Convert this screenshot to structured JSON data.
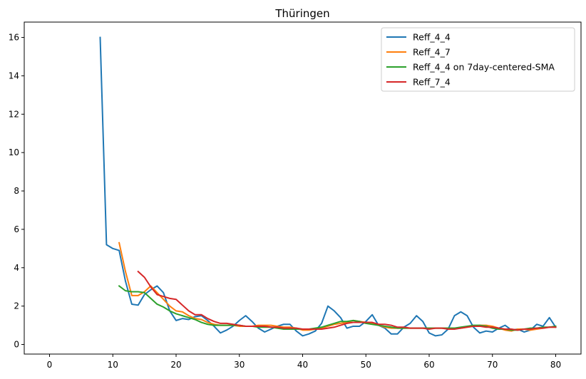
{
  "chart_data": {
    "type": "line",
    "title": "Thüringen",
    "xlabel": "",
    "ylabel": "",
    "xlim": [
      -4,
      84
    ],
    "ylim": [
      -0.5,
      16.8
    ],
    "xticks": [
      0,
      10,
      20,
      30,
      40,
      50,
      60,
      70,
      80
    ],
    "yticks": [
      0,
      2,
      4,
      6,
      8,
      10,
      12,
      14,
      16
    ],
    "grid": false,
    "legend_position": "upper right",
    "series": [
      {
        "name": "Reff_4_4",
        "color": "#1f77b4",
        "x": [
          8,
          9,
          10,
          11,
          12,
          13,
          14,
          15,
          16,
          17,
          18,
          19,
          20,
          21,
          22,
          23,
          24,
          25,
          26,
          27,
          28,
          29,
          30,
          31,
          32,
          33,
          34,
          35,
          36,
          37,
          38,
          39,
          40,
          41,
          42,
          43,
          44,
          45,
          46,
          47,
          48,
          49,
          50,
          51,
          52,
          53,
          54,
          55,
          56,
          57,
          58,
          59,
          60,
          61,
          62,
          63,
          64,
          65,
          66,
          67,
          68,
          69,
          70,
          71,
          72,
          73,
          74,
          75,
          76,
          77,
          78,
          79,
          80
        ],
        "values": [
          16.0,
          5.2,
          5.0,
          4.9,
          3.3,
          2.1,
          2.05,
          2.6,
          2.85,
          3.05,
          2.7,
          1.75,
          1.25,
          1.35,
          1.3,
          1.45,
          1.5,
          1.25,
          0.95,
          0.6,
          0.75,
          0.95,
          1.25,
          1.5,
          1.2,
          0.85,
          0.65,
          0.8,
          0.95,
          1.05,
          1.05,
          0.7,
          0.45,
          0.55,
          0.7,
          1.1,
          2.0,
          1.75,
          1.4,
          0.85,
          0.95,
          0.95,
          1.2,
          1.55,
          1.0,
          0.85,
          0.55,
          0.55,
          0.9,
          1.1,
          1.5,
          1.2,
          0.6,
          0.45,
          0.5,
          0.8,
          1.5,
          1.7,
          1.5,
          0.9,
          0.6,
          0.7,
          0.65,
          0.85,
          1.0,
          0.75,
          0.8,
          0.65,
          0.75,
          1.05,
          0.95,
          1.4,
          0.9
        ]
      },
      {
        "name": "Reff_4_7",
        "color": "#ff7f0e",
        "x": [
          11,
          12,
          13,
          14,
          15,
          16,
          17,
          18,
          19,
          20,
          21,
          22,
          23,
          24,
          25,
          26,
          27,
          28,
          29,
          30,
          31,
          32,
          33,
          34,
          35,
          36,
          37,
          38,
          39,
          40,
          41,
          42,
          43,
          44,
          45,
          46,
          47,
          48,
          49,
          50,
          51,
          52,
          53,
          54,
          55,
          56,
          57,
          58,
          59,
          60,
          61,
          62,
          63,
          64,
          65,
          66,
          67,
          68,
          69,
          70,
          71,
          72,
          73,
          74,
          75,
          76,
          77,
          78,
          79,
          80
        ],
        "values": [
          5.3,
          3.8,
          2.55,
          2.55,
          2.75,
          3.05,
          2.7,
          2.35,
          2.0,
          1.75,
          1.7,
          1.5,
          1.35,
          1.3,
          1.15,
          1.05,
          1.0,
          1.0,
          1.0,
          0.95,
          0.95,
          0.95,
          1.0,
          1.0,
          1.0,
          0.95,
          0.9,
          0.9,
          0.85,
          0.75,
          0.75,
          0.8,
          0.85,
          0.95,
          1.05,
          1.1,
          1.15,
          1.25,
          1.2,
          1.15,
          1.1,
          1.0,
          0.9,
          0.85,
          0.85,
          0.85,
          0.85,
          0.85,
          0.85,
          0.85,
          0.85,
          0.85,
          0.85,
          0.85,
          0.85,
          0.9,
          0.95,
          1.0,
          1.0,
          0.95,
          0.85,
          0.75,
          0.7,
          0.8,
          0.8,
          0.75,
          0.8,
          0.85,
          0.9,
          0.9
        ]
      },
      {
        "name": "Reff_4_4 on 7day-centered-SMA",
        "color": "#2ca02c",
        "x": [
          11,
          12,
          13,
          14,
          15,
          16,
          17,
          18,
          19,
          20,
          21,
          22,
          23,
          24,
          25,
          26,
          27,
          28,
          29,
          30,
          31,
          32,
          33,
          34,
          35,
          36,
          37,
          38,
          39,
          40,
          41,
          42,
          43,
          44,
          45,
          46,
          47,
          48,
          49,
          50,
          51,
          52,
          53,
          54,
          55,
          56,
          57,
          58,
          59,
          60,
          61,
          62,
          63,
          64,
          65,
          66,
          67,
          68,
          69,
          70,
          71,
          72,
          73,
          74,
          75,
          76,
          77,
          78,
          79,
          80
        ],
        "values": [
          3.05,
          2.8,
          2.75,
          2.75,
          2.7,
          2.4,
          2.1,
          1.95,
          1.75,
          1.6,
          1.5,
          1.4,
          1.3,
          1.15,
          1.05,
          1.0,
          1.0,
          1.0,
          1.0,
          1.0,
          0.95,
          0.95,
          0.9,
          0.9,
          0.9,
          0.85,
          0.8,
          0.8,
          0.8,
          0.8,
          0.8,
          0.85,
          0.9,
          1.0,
          1.1,
          1.2,
          1.2,
          1.25,
          1.2,
          1.1,
          1.05,
          1.0,
          0.95,
          0.9,
          0.85,
          0.85,
          0.85,
          0.85,
          0.85,
          0.85,
          0.85,
          0.85,
          0.85,
          0.85,
          0.9,
          0.95,
          1.0,
          1.0,
          0.95,
          0.85,
          0.8,
          0.8,
          0.75,
          0.75,
          0.8,
          0.85,
          0.85,
          0.9,
          0.9,
          0.95
        ]
      },
      {
        "name": "Reff_7_4",
        "color": "#d62728",
        "x": [
          14,
          15,
          16,
          17,
          18,
          19,
          20,
          21,
          22,
          23,
          24,
          25,
          26,
          27,
          28,
          29,
          30,
          31,
          32,
          33,
          34,
          35,
          36,
          37,
          38,
          39,
          40,
          41,
          42,
          43,
          44,
          45,
          46,
          47,
          48,
          49,
          50,
          51,
          52,
          53,
          54,
          55,
          56,
          57,
          58,
          59,
          60,
          61,
          62,
          63,
          64,
          65,
          66,
          67,
          68,
          69,
          70,
          71,
          72,
          73,
          74,
          75,
          76,
          77,
          78,
          79,
          80
        ],
        "values": [
          3.8,
          3.5,
          3.0,
          2.6,
          2.5,
          2.4,
          2.35,
          2.05,
          1.75,
          1.55,
          1.55,
          1.35,
          1.2,
          1.1,
          1.1,
          1.05,
          1.0,
          0.95,
          0.95,
          0.95,
          0.95,
          0.9,
          0.9,
          0.85,
          0.85,
          0.85,
          0.8,
          0.8,
          0.8,
          0.8,
          0.85,
          0.9,
          1.0,
          1.1,
          1.15,
          1.15,
          1.15,
          1.15,
          1.05,
          1.05,
          1.0,
          0.9,
          0.9,
          0.85,
          0.85,
          0.85,
          0.8,
          0.85,
          0.85,
          0.8,
          0.8,
          0.85,
          0.9,
          0.95,
          0.95,
          0.9,
          0.9,
          0.85,
          0.8,
          0.8,
          0.75,
          0.8,
          0.8,
          0.85,
          0.85,
          0.9,
          0.9
        ]
      }
    ]
  }
}
